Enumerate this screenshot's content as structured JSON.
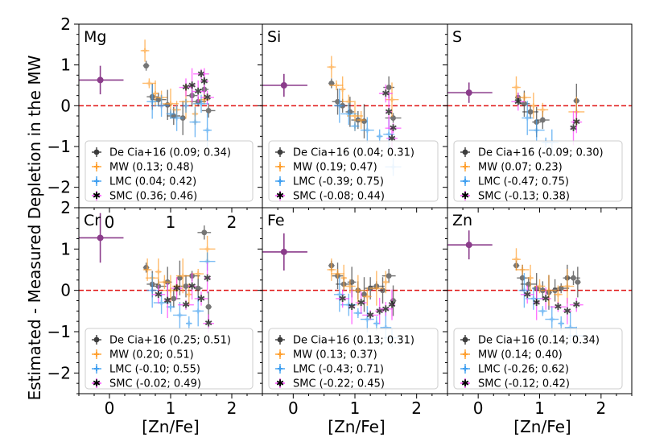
{
  "figure": {
    "ylabel": "Estimated - Measured Depletion in the MW",
    "xlabel": "[Zn/Fe]"
  },
  "colors": {
    "de_cia": "#3c3c3c",
    "mw": "#ff9f2e",
    "lmc": "#3f9ff0",
    "smc": "#ff3cff",
    "zero_line": "#e01010",
    "single_point": "#8b3c8b"
  },
  "chart_data": [
    {
      "type": "scatter",
      "element": "Mg",
      "xlim": [
        -0.5,
        2.5
      ],
      "ylim": [
        -2.5,
        2
      ],
      "xticks": [
        "0",
        "1",
        "2"
      ],
      "yticks": [
        "2",
        "1",
        "0",
        "−1",
        "−2"
      ],
      "single_point": {
        "x": -0.15,
        "y": 0.63,
        "xerr": 0.38,
        "yerr": 0.35
      },
      "legend": [
        "De Cia+16 (0.09; 0.34)",
        "MW (0.13; 0.48)",
        "LMC (0.04; 0.42)",
        "SMC (0.36; 0.46)"
      ],
      "series": [
        {
          "name": "De Cia+16",
          "x": [
            0.6,
            0.7,
            0.8,
            0.95,
            1.05,
            1.2,
            1.35,
            1.45,
            1.55,
            1.62
          ],
          "y": [
            0.98,
            0.22,
            0.15,
            0.02,
            -0.25,
            -0.3,
            0.25,
            0.1,
            0.4,
            -0.12
          ]
        },
        {
          "name": "MW",
          "x": [
            0.58,
            0.65,
            0.75,
            0.85,
            1.0,
            1.1,
            1.25,
            1.4,
            1.55
          ],
          "y": [
            1.35,
            0.55,
            0.3,
            0.2,
            0.05,
            -0.1,
            0.1,
            -0.2,
            0.15
          ]
        },
        {
          "name": "LMC",
          "x": [
            0.7,
            0.85,
            1.0,
            1.1,
            1.25,
            1.4,
            1.5,
            1.6
          ],
          "y": [
            0.1,
            0.0,
            -0.2,
            -0.3,
            0.0,
            -0.4,
            0.05,
            -0.6
          ]
        },
        {
          "name": "SMC",
          "x": [
            1.25,
            1.35,
            1.45,
            1.5,
            1.55,
            1.6
          ],
          "y": [
            0.45,
            0.5,
            0.35,
            0.78,
            0.6,
            0.2
          ]
        }
      ]
    },
    {
      "type": "scatter",
      "element": "Si",
      "xlim": [
        -0.5,
        2.5
      ],
      "ylim": [
        -2.5,
        2
      ],
      "xticks": [],
      "yticks": [],
      "single_point": {
        "x": -0.15,
        "y": 0.5,
        "xerr": 0.38,
        "yerr": 0.28
      },
      "legend": [
        "De Cia+16 (0.04; 0.31)",
        "MW (0.19; 0.47)",
        "LMC (-0.39; 0.75)",
        "SMC (-0.08; 0.44)"
      ],
      "series": [
        {
          "name": "De Cia+16",
          "x": [
            0.62,
            0.72,
            0.8,
            0.92,
            1.05,
            1.15,
            1.55,
            1.62
          ],
          "y": [
            0.55,
            0.1,
            0.0,
            -0.15,
            -0.35,
            -0.38,
            0.45,
            -0.3
          ]
        },
        {
          "name": "MW",
          "x": [
            0.62,
            0.7,
            0.8,
            0.9,
            1.0,
            1.1,
            1.6
          ],
          "y": [
            0.95,
            0.5,
            0.4,
            0.1,
            -0.25,
            -0.35,
            0.15
          ]
        },
        {
          "name": "LMC",
          "x": [
            0.75,
            0.9,
            1.0,
            1.2,
            1.4,
            1.55,
            1.62
          ],
          "y": [
            0.0,
            -0.2,
            -0.5,
            -0.6,
            -0.75,
            -0.7,
            -1.5
          ]
        },
        {
          "name": "SMC",
          "x": [
            1.5,
            1.55,
            1.6,
            1.62
          ],
          "y": [
            0.3,
            -0.15,
            -0.8,
            -0.55
          ]
        }
      ]
    },
    {
      "type": "scatter",
      "element": "S",
      "xlim": [
        -0.5,
        2.5
      ],
      "ylim": [
        -2.5,
        2
      ],
      "xticks": [],
      "yticks": [],
      "single_point": {
        "x": -0.15,
        "y": 0.32,
        "xerr": 0.38,
        "yerr": 0.25
      },
      "legend": [
        "De Cia+16 (-0.09; 0.30)",
        "MW (0.07; 0.23)",
        "LMC (-0.47; 0.75)",
        "SMC (-0.13; 0.38)"
      ],
      "series": [
        {
          "name": "De Cia+16",
          "x": [
            0.65,
            0.75,
            0.85,
            0.95,
            1.05,
            1.6
          ],
          "y": [
            0.2,
            0.05,
            -0.15,
            -0.4,
            -0.35,
            0.12
          ]
        },
        {
          "name": "MW",
          "x": [
            0.62,
            0.75,
            0.9,
            1.05,
            1.6
          ],
          "y": [
            0.45,
            0.2,
            0.0,
            -0.1,
            -0.15
          ]
        },
        {
          "name": "LMC",
          "x": [
            0.8,
            0.95,
            1.1,
            1.2
          ],
          "y": [
            -0.3,
            -0.6,
            -0.9,
            -0.9
          ]
        },
        {
          "name": "SMC",
          "x": [
            0.65,
            1.55,
            1.6
          ],
          "y": [
            0.1,
            -0.55,
            -0.4
          ]
        }
      ]
    },
    {
      "type": "scatter",
      "element": "Cr",
      "xlim": [
        -0.5,
        2.5
      ],
      "ylim": [
        -2.5,
        2
      ],
      "xticks": [
        "0",
        "1",
        "2"
      ],
      "yticks": [
        "2",
        "1",
        "0",
        "−1",
        "−2"
      ],
      "single_point": {
        "x": -0.15,
        "y": 1.27,
        "xerr": 0.38,
        "yerr": 0.6
      },
      "legend": [
        "De Cia+16 (0.25; 0.51)",
        "MW (0.20; 0.51)",
        "LMC (-0.10; 0.55)",
        "SMC (-0.02; 0.49)"
      ],
      "series": [
        {
          "name": "De Cia+16",
          "x": [
            0.6,
            0.7,
            0.8,
            0.95,
            1.05,
            1.15,
            1.25,
            1.35,
            1.45,
            1.55,
            1.62
          ],
          "y": [
            0.55,
            0.15,
            0.1,
            0.2,
            -0.2,
            0.3,
            0.1,
            0.35,
            0.05,
            1.4,
            -0.4
          ]
        },
        {
          "name": "MW",
          "x": [
            0.62,
            0.7,
            0.8,
            0.9,
            1.0,
            1.1,
            1.2,
            1.3,
            1.45,
            1.6
          ],
          "y": [
            0.5,
            0.3,
            0.45,
            0.2,
            0.0,
            0.1,
            0.35,
            -0.1,
            0.4,
            1.0
          ]
        },
        {
          "name": "LMC",
          "x": [
            0.7,
            0.85,
            1.0,
            1.15,
            1.3,
            1.45,
            1.6
          ],
          "y": [
            0.0,
            -0.3,
            -0.4,
            -0.6,
            -0.8,
            -0.5,
            0.7
          ]
        },
        {
          "name": "SMC",
          "x": [
            0.8,
            0.95,
            1.1,
            1.25,
            1.35,
            1.5,
            1.6,
            1.62
          ],
          "y": [
            -0.1,
            -0.25,
            0.05,
            -0.35,
            0.1,
            -0.2,
            0.3,
            -0.8
          ]
        }
      ]
    },
    {
      "type": "scatter",
      "element": "Fe",
      "xlim": [
        -0.5,
        2.5
      ],
      "ylim": [
        -2.5,
        2
      ],
      "xticks": [
        "0",
        "1",
        "2"
      ],
      "yticks": [],
      "single_point": {
        "x": -0.15,
        "y": 0.93,
        "xerr": 0.38,
        "yerr": 0.45
      },
      "legend": [
        "De Cia+16 (0.13; 0.31)",
        "MW (0.13; 0.37)",
        "LMC (-0.43; 0.71)",
        "SMC (-0.22; 0.45)"
      ],
      "series": [
        {
          "name": "De Cia+16",
          "x": [
            0.62,
            0.72,
            0.82,
            0.95,
            1.05,
            1.15,
            1.25,
            1.35,
            1.45,
            1.55,
            1.62
          ],
          "y": [
            0.6,
            0.35,
            0.15,
            0.2,
            0.0,
            -0.1,
            0.05,
            0.1,
            0.0,
            0.35,
            -0.25
          ]
        },
        {
          "name": "MW",
          "x": [
            0.62,
            0.72,
            0.82,
            0.92,
            1.05,
            1.2,
            1.35,
            1.5
          ],
          "y": [
            0.5,
            0.4,
            0.3,
            0.1,
            0.0,
            -0.15,
            0.05,
            0.2
          ]
        },
        {
          "name": "LMC",
          "x": [
            0.75,
            0.9,
            1.05,
            1.2,
            1.35,
            1.5,
            1.6
          ],
          "y": [
            -0.1,
            -0.35,
            -0.55,
            -0.7,
            -0.8,
            -0.9,
            -1.15
          ]
        },
        {
          "name": "SMC",
          "x": [
            0.8,
            0.95,
            1.1,
            1.25,
            1.4,
            1.5,
            1.6
          ],
          "y": [
            -0.2,
            -0.4,
            -0.3,
            -0.6,
            -0.5,
            -0.45,
            -0.35
          ]
        }
      ]
    },
    {
      "type": "scatter",
      "element": "Zn",
      "xlim": [
        -0.5,
        2.5
      ],
      "ylim": [
        -2.5,
        2
      ],
      "xticks": [
        "0",
        "1",
        "2"
      ],
      "yticks": [],
      "single_point": {
        "x": -0.15,
        "y": 1.1,
        "xerr": 0.38,
        "yerr": 0.35
      },
      "legend": [
        "De Cia+16 (0.14; 0.34)",
        "MW (0.14; 0.40)",
        "LMC (-0.26; 0.62)",
        "SMC (-0.12; 0.42)"
      ],
      "series": [
        {
          "name": "De Cia+16",
          "x": [
            0.62,
            0.72,
            0.82,
            0.95,
            1.05,
            1.15,
            1.25,
            1.35,
            1.45,
            1.55,
            1.62
          ],
          "y": [
            0.6,
            0.3,
            0.15,
            0.05,
            0.0,
            -0.05,
            0.0,
            0.05,
            0.3,
            0.3,
            0.2
          ]
        },
        {
          "name": "MW",
          "x": [
            0.62,
            0.72,
            0.85,
            1.0,
            1.15,
            1.3,
            1.45
          ],
          "y": [
            0.75,
            0.5,
            0.3,
            0.1,
            0.0,
            -0.1,
            0.1
          ]
        },
        {
          "name": "LMC",
          "x": [
            0.75,
            0.9,
            1.05,
            1.2,
            1.35,
            1.5,
            1.6
          ],
          "y": [
            0.0,
            -0.2,
            -0.5,
            -0.7,
            -0.8,
            -0.9,
            -1.1
          ]
        },
        {
          "name": "SMC",
          "x": [
            0.8,
            0.95,
            1.1,
            1.3,
            1.45,
            1.6
          ],
          "y": [
            -0.1,
            -0.3,
            -0.2,
            -0.4,
            -0.5,
            -0.35
          ]
        }
      ]
    }
  ]
}
